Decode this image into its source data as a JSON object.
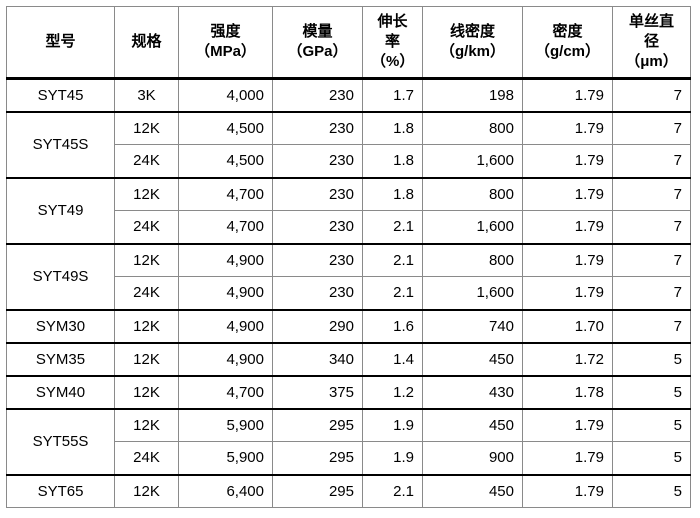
{
  "headers": [
    [
      "型号"
    ],
    [
      "规格"
    ],
    [
      "强度",
      "（MPa）"
    ],
    [
      "模量",
      "（GPa）"
    ],
    [
      "伸长",
      "率",
      "（%）"
    ],
    [
      "线密度",
      "（g/km）"
    ],
    [
      "密度",
      "（g/cm）"
    ],
    [
      "单丝直",
      "径",
      "（μm）"
    ]
  ],
  "groups": [
    {
      "model": "SYT45",
      "rows": [
        {
          "spec": "3K",
          "strength": "4,000",
          "modulus": "230",
          "elong": "1.7",
          "lin_density": "198",
          "density": "1.79",
          "diameter": "7"
        }
      ]
    },
    {
      "model": "SYT45S",
      "rows": [
        {
          "spec": "12K",
          "strength": "4,500",
          "modulus": "230",
          "elong": "1.8",
          "lin_density": "800",
          "density": "1.79",
          "diameter": "7"
        },
        {
          "spec": "24K",
          "strength": "4,500",
          "modulus": "230",
          "elong": "1.8",
          "lin_density": "1,600",
          "density": "1.79",
          "diameter": "7"
        }
      ]
    },
    {
      "model": "SYT49",
      "rows": [
        {
          "spec": "12K",
          "strength": "4,700",
          "modulus": "230",
          "elong": "1.8",
          "lin_density": "800",
          "density": "1.79",
          "diameter": "7"
        },
        {
          "spec": "24K",
          "strength": "4,700",
          "modulus": "230",
          "elong": "2.1",
          "lin_density": "1,600",
          "density": "1.79",
          "diameter": "7"
        }
      ]
    },
    {
      "model": "SYT49S",
      "rows": [
        {
          "spec": "12K",
          "strength": "4,900",
          "modulus": "230",
          "elong": "2.1",
          "lin_density": "800",
          "density": "1.79",
          "diameter": "7"
        },
        {
          "spec": "24K",
          "strength": "4,900",
          "modulus": "230",
          "elong": "2.1",
          "lin_density": "1,600",
          "density": "1.79",
          "diameter": "7"
        }
      ]
    },
    {
      "model": "SYM30",
      "rows": [
        {
          "spec": "12K",
          "strength": "4,900",
          "modulus": "290",
          "elong": "1.6",
          "lin_density": "740",
          "density": "1.70",
          "diameter": "7"
        }
      ]
    },
    {
      "model": "SYM35",
      "rows": [
        {
          "spec": "12K",
          "strength": "4,900",
          "modulus": "340",
          "elong": "1.4",
          "lin_density": "450",
          "density": "1.72",
          "diameter": "5"
        }
      ]
    },
    {
      "model": "SYM40",
      "rows": [
        {
          "spec": "12K",
          "strength": "4,700",
          "modulus": "375",
          "elong": "1.2",
          "lin_density": "430",
          "density": "1.78",
          "diameter": "5"
        }
      ]
    },
    {
      "model": "SYT55S",
      "rows": [
        {
          "spec": "12K",
          "strength": "5,900",
          "modulus": "295",
          "elong": "1.9",
          "lin_density": "450",
          "density": "1.79",
          "diameter": "5"
        },
        {
          "spec": "24K",
          "strength": "5,900",
          "modulus": "295",
          "elong": "1.9",
          "lin_density": "900",
          "density": "1.79",
          "diameter": "5"
        }
      ]
    },
    {
      "model": "SYT65",
      "rows": [
        {
          "spec": "12K",
          "strength": "6,400",
          "modulus": "295",
          "elong": "2.1",
          "lin_density": "450",
          "density": "1.79",
          "diameter": "5"
        }
      ]
    }
  ]
}
